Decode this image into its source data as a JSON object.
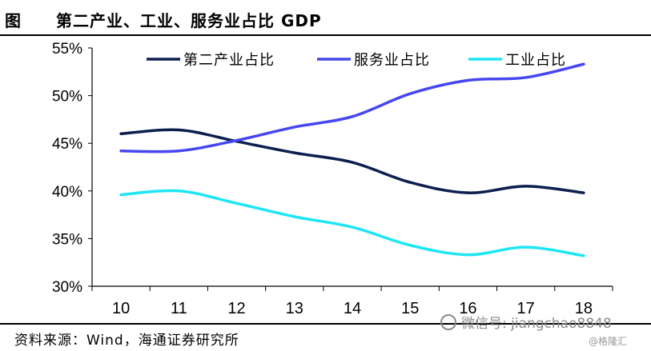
{
  "header": {
    "figure_label": "图",
    "title": "第二产业、工业、服务业占比 GDP"
  },
  "footer": {
    "source": "资料来源：Wind，海通证券研究所",
    "wechat": "微信号: jiangchao8848",
    "credit": "@格隆汇"
  },
  "chart_data": {
    "type": "line",
    "title": "第二产业、工业、服务业占比 GDP",
    "x": [
      "10",
      "11",
      "12",
      "13",
      "14",
      "15",
      "16",
      "17",
      "18"
    ],
    "xlabel": "",
    "ylabel": "",
    "ylim": [
      30,
      55
    ],
    "yticks": [
      "30%",
      "35%",
      "40%",
      "45%",
      "50%",
      "55%"
    ],
    "legend_position": "top",
    "grid": false,
    "series": [
      {
        "name": "第二产业占比",
        "color": "#0d1f4d",
        "values": [
          46.0,
          46.4,
          45.2,
          44.0,
          43.0,
          40.9,
          39.8,
          40.5,
          39.8
        ]
      },
      {
        "name": "服务业占比",
        "color": "#4646f0",
        "values": [
          44.2,
          44.2,
          45.3,
          46.7,
          47.8,
          50.2,
          51.6,
          51.9,
          53.3
        ]
      },
      {
        "name": "工业占比",
        "color": "#1ee6f5",
        "values": [
          39.6,
          40.0,
          38.7,
          37.3,
          36.2,
          34.3,
          33.3,
          34.1,
          33.2
        ]
      }
    ]
  }
}
